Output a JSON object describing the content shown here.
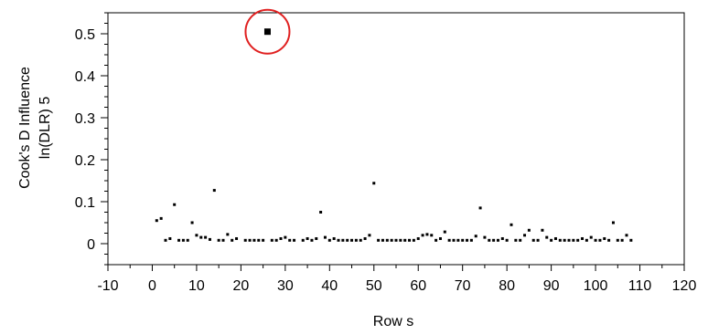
{
  "chart_data": {
    "type": "scatter",
    "xlabel": "Row s",
    "ylabel_lines": [
      "Cook's D Influence",
      "ln(DLR) 5"
    ],
    "xlim": [
      -10,
      120
    ],
    "ylim": [
      -0.05,
      0.55
    ],
    "x_ticks": [
      -10,
      0,
      10,
      20,
      30,
      40,
      50,
      60,
      70,
      80,
      90,
      100,
      110,
      120
    ],
    "y_ticks": [
      0,
      0.1,
      0.2,
      0.3,
      0.4,
      0.5
    ],
    "y_tick_labels": [
      "0",
      "0.1",
      "0.2",
      "0.3",
      "0.4",
      "0.5"
    ],
    "grid": false,
    "highlight": {
      "x": 26,
      "y": 0.505,
      "shape": "circle",
      "color": "#e02020"
    },
    "points": [
      {
        "x": 1,
        "y": 0.055
      },
      {
        "x": 2,
        "y": 0.06
      },
      {
        "x": 3,
        "y": 0.008
      },
      {
        "x": 4,
        "y": 0.012
      },
      {
        "x": 5,
        "y": 0.093
      },
      {
        "x": 6,
        "y": 0.008
      },
      {
        "x": 7,
        "y": 0.008
      },
      {
        "x": 8,
        "y": 0.008
      },
      {
        "x": 9,
        "y": 0.05
      },
      {
        "x": 10,
        "y": 0.02
      },
      {
        "x": 11,
        "y": 0.015
      },
      {
        "x": 12,
        "y": 0.015
      },
      {
        "x": 13,
        "y": 0.01
      },
      {
        "x": 14,
        "y": 0.127
      },
      {
        "x": 15,
        "y": 0.008
      },
      {
        "x": 16,
        "y": 0.008
      },
      {
        "x": 17,
        "y": 0.022
      },
      {
        "x": 18,
        "y": 0.008
      },
      {
        "x": 19,
        "y": 0.012
      },
      {
        "x": 21,
        "y": 0.008
      },
      {
        "x": 22,
        "y": 0.008
      },
      {
        "x": 23,
        "y": 0.008
      },
      {
        "x": 24,
        "y": 0.008
      },
      {
        "x": 25,
        "y": 0.008
      },
      {
        "x": 26,
        "y": 0.505
      },
      {
        "x": 27,
        "y": 0.008
      },
      {
        "x": 28,
        "y": 0.008
      },
      {
        "x": 29,
        "y": 0.012
      },
      {
        "x": 30,
        "y": 0.015
      },
      {
        "x": 31,
        "y": 0.008
      },
      {
        "x": 32,
        "y": 0.008
      },
      {
        "x": 34,
        "y": 0.008
      },
      {
        "x": 35,
        "y": 0.012
      },
      {
        "x": 36,
        "y": 0.008
      },
      {
        "x": 37,
        "y": 0.012
      },
      {
        "x": 38,
        "y": 0.075
      },
      {
        "x": 39,
        "y": 0.015
      },
      {
        "x": 40,
        "y": 0.008
      },
      {
        "x": 41,
        "y": 0.012
      },
      {
        "x": 42,
        "y": 0.008
      },
      {
        "x": 43,
        "y": 0.008
      },
      {
        "x": 44,
        "y": 0.008
      },
      {
        "x": 45,
        "y": 0.008
      },
      {
        "x": 46,
        "y": 0.008
      },
      {
        "x": 47,
        "y": 0.008
      },
      {
        "x": 48,
        "y": 0.012
      },
      {
        "x": 49,
        "y": 0.02
      },
      {
        "x": 50,
        "y": 0.144
      },
      {
        "x": 51,
        "y": 0.008
      },
      {
        "x": 52,
        "y": 0.008
      },
      {
        "x": 53,
        "y": 0.008
      },
      {
        "x": 54,
        "y": 0.008
      },
      {
        "x": 55,
        "y": 0.008
      },
      {
        "x": 56,
        "y": 0.008
      },
      {
        "x": 57,
        "y": 0.008
      },
      {
        "x": 58,
        "y": 0.008
      },
      {
        "x": 59,
        "y": 0.008
      },
      {
        "x": 60,
        "y": 0.012
      },
      {
        "x": 61,
        "y": 0.02
      },
      {
        "x": 62,
        "y": 0.022
      },
      {
        "x": 63,
        "y": 0.02
      },
      {
        "x": 64,
        "y": 0.008
      },
      {
        "x": 65,
        "y": 0.012
      },
      {
        "x": 66,
        "y": 0.028
      },
      {
        "x": 67,
        "y": 0.008
      },
      {
        "x": 68,
        "y": 0.008
      },
      {
        "x": 69,
        "y": 0.008
      },
      {
        "x": 70,
        "y": 0.008
      },
      {
        "x": 71,
        "y": 0.008
      },
      {
        "x": 72,
        "y": 0.008
      },
      {
        "x": 73,
        "y": 0.018
      },
      {
        "x": 74,
        "y": 0.085
      },
      {
        "x": 75,
        "y": 0.015
      },
      {
        "x": 76,
        "y": 0.008
      },
      {
        "x": 77,
        "y": 0.008
      },
      {
        "x": 78,
        "y": 0.008
      },
      {
        "x": 79,
        "y": 0.012
      },
      {
        "x": 80,
        "y": 0.008
      },
      {
        "x": 81,
        "y": 0.045
      },
      {
        "x": 82,
        "y": 0.008
      },
      {
        "x": 83,
        "y": 0.008
      },
      {
        "x": 84,
        "y": 0.02
      },
      {
        "x": 85,
        "y": 0.032
      },
      {
        "x": 86,
        "y": 0.008
      },
      {
        "x": 87,
        "y": 0.008
      },
      {
        "x": 88,
        "y": 0.032
      },
      {
        "x": 89,
        "y": 0.015
      },
      {
        "x": 90,
        "y": 0.008
      },
      {
        "x": 91,
        "y": 0.012
      },
      {
        "x": 92,
        "y": 0.008
      },
      {
        "x": 93,
        "y": 0.008
      },
      {
        "x": 94,
        "y": 0.008
      },
      {
        "x": 95,
        "y": 0.008
      },
      {
        "x": 96,
        "y": 0.008
      },
      {
        "x": 97,
        "y": 0.012
      },
      {
        "x": 98,
        "y": 0.008
      },
      {
        "x": 99,
        "y": 0.015
      },
      {
        "x": 100,
        "y": 0.008
      },
      {
        "x": 101,
        "y": 0.008
      },
      {
        "x": 102,
        "y": 0.012
      },
      {
        "x": 103,
        "y": 0.008
      },
      {
        "x": 104,
        "y": 0.05
      },
      {
        "x": 105,
        "y": 0.008
      },
      {
        "x": 106,
        "y": 0.008
      },
      {
        "x": 107,
        "y": 0.02
      },
      {
        "x": 108,
        "y": 0.008
      }
    ]
  }
}
